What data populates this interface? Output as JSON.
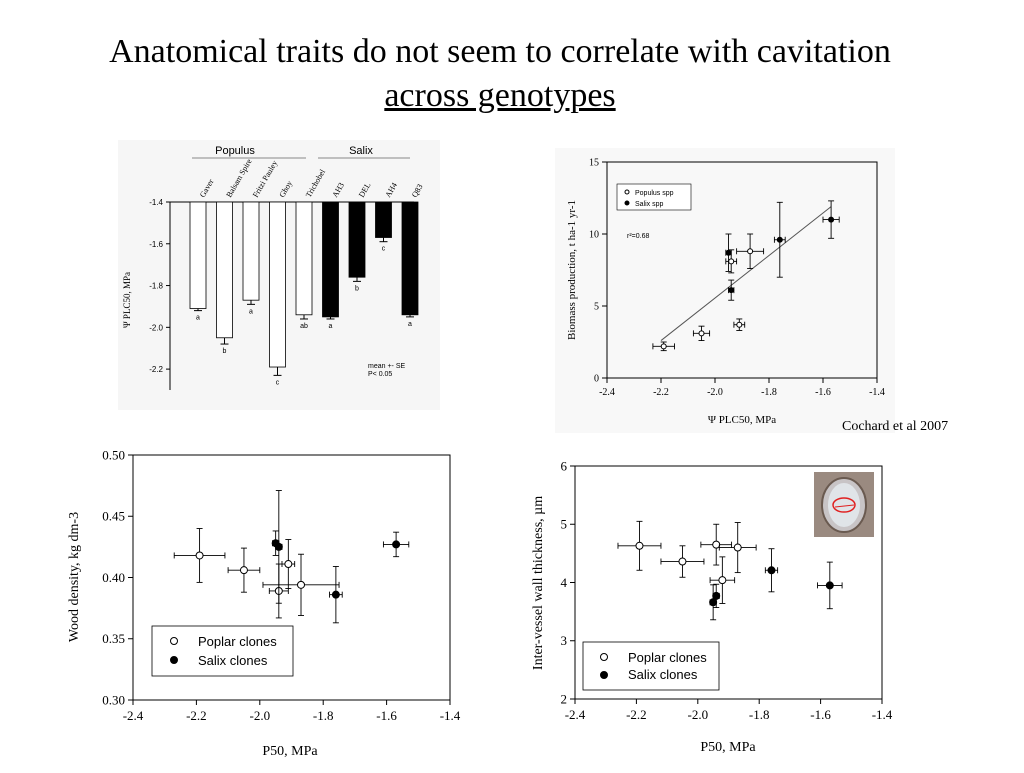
{
  "slide": {
    "title_line1": "Anatomical traits do not seem to correlate with cavitation",
    "title_line2": "across genotypes",
    "credit": "Cochard et al 2007"
  },
  "chart_data": [
    {
      "type": "bar",
      "groups": [
        "Populus",
        "Salix"
      ],
      "categories": [
        "Gaver",
        "Balsam Spire",
        "Fritzi Pauley",
        "Ghoy",
        "Trichobel",
        "AH3",
        "DEL",
        "AH4",
        "Q83"
      ],
      "group_of": [
        "Populus",
        "Populus",
        "Populus",
        "Populus",
        "Populus",
        "Salix",
        "Salix",
        "Salix",
        "Salix"
      ],
      "values": [
        -1.91,
        -2.05,
        -1.87,
        -2.19,
        -1.94,
        -1.95,
        -1.76,
        -1.57,
        -1.94
      ],
      "errors": [
        0.01,
        0.03,
        0.02,
        0.04,
        0.02,
        0.01,
        0.02,
        0.02,
        0.01
      ],
      "letters": [
        "a",
        "b",
        "a",
        "c",
        "ab",
        "a",
        "b",
        "c",
        "a"
      ],
      "ylabel": "Ψ PLC50, MPa",
      "yticks": [
        -1.4,
        -1.6,
        -1.8,
        -2.0,
        -2.2
      ],
      "ylim": [
        -2.3,
        -1.4
      ],
      "note_line1": "mean +- SE",
      "note_line2": "P< 0.05",
      "colors": {
        "Populus": "#ffffff",
        "Salix": "#000000"
      }
    },
    {
      "type": "scatter",
      "xlabel": "Ψ PLC50, MPa",
      "ylabel": "Biomass production, t ha-1 yr-1",
      "xlim": [
        -2.4,
        -1.4
      ],
      "ylim": [
        0,
        15
      ],
      "xticks": [
        -2.4,
        -2.2,
        -2.0,
        -1.8,
        -1.6,
        -1.4
      ],
      "yticks": [
        0,
        5,
        10,
        15
      ],
      "annotation": "r²=0.68",
      "legend": [
        "Populus spp",
        "Salix spp"
      ],
      "series": [
        {
          "name": "Populus spp",
          "filled": false,
          "points": [
            {
              "x": -2.19,
              "y": 2.2,
              "xerr": 0.04,
              "yerr": 0.3
            },
            {
              "x": -2.05,
              "y": 3.1,
              "xerr": 0.03,
              "yerr": 0.5
            },
            {
              "x": -1.91,
              "y": 3.7,
              "xerr": 0.02,
              "yerr": 0.4
            },
            {
              "x": -1.94,
              "y": 8.1,
              "xerr": 0.02,
              "yerr": 0.8
            },
            {
              "x": -1.87,
              "y": 8.8,
              "xerr": 0.05,
              "yerr": 1.2
            }
          ]
        },
        {
          "name": "Salix spp",
          "filled": true,
          "points": [
            {
              "x": -1.95,
              "y": 8.7,
              "xerr": 0.01,
              "yerr": 1.3
            },
            {
              "x": -1.94,
              "y": 6.1,
              "xerr": 0.01,
              "yerr": 0.7
            },
            {
              "x": -1.76,
              "y": 9.6,
              "xerr": 0.02,
              "yerr": 2.6
            },
            {
              "x": -1.57,
              "y": 11.0,
              "xerr": 0.03,
              "yerr": 1.3
            }
          ]
        }
      ],
      "fit_line": {
        "x": [
          -2.2,
          -1.57
        ],
        "y": [
          2.6,
          11.9
        ]
      }
    },
    {
      "type": "scatter",
      "xlabel": "P50, MPa",
      "ylabel": "Wood density, kg dm-3",
      "xlim": [
        -2.4,
        -1.4
      ],
      "ylim": [
        0.3,
        0.5
      ],
      "xticks": [
        -2.4,
        -2.2,
        -2.0,
        -1.8,
        -1.6,
        -1.4
      ],
      "yticks": [
        0.3,
        0.35,
        0.4,
        0.45,
        0.5
      ],
      "legend": [
        "Poplar clones",
        "Salix clones"
      ],
      "series": [
        {
          "name": "Poplar clones",
          "filled": false,
          "points": [
            {
              "x": -2.19,
              "y": 0.418,
              "xerr": 0.08,
              "yerr": 0.022
            },
            {
              "x": -2.05,
              "y": 0.406,
              "xerr": 0.05,
              "yerr": 0.018
            },
            {
              "x": -1.94,
              "y": 0.389,
              "xerr": 0.03,
              "yerr": 0.022
            },
            {
              "x": -1.91,
              "y": 0.411,
              "xerr": 0.02,
              "yerr": 0.02
            },
            {
              "x": -1.87,
              "y": 0.394,
              "xerr": 0.12,
              "yerr": 0.025
            }
          ]
        },
        {
          "name": "Salix clones",
          "filled": true,
          "points": [
            {
              "x": -1.95,
              "y": 0.428,
              "xerr": 0.01,
              "yerr": 0.01
            },
            {
              "x": -1.94,
              "y": 0.425,
              "xerr": 0.01,
              "yerr": 0.046
            },
            {
              "x": -1.76,
              "y": 0.386,
              "xerr": 0.02,
              "yerr": 0.023
            },
            {
              "x": -1.57,
              "y": 0.427,
              "xerr": 0.04,
              "yerr": 0.01
            }
          ]
        }
      ]
    },
    {
      "type": "scatter",
      "xlabel": "P50, MPa",
      "ylabel": "Inter-vessel wall thickness, µm",
      "xlim": [
        -2.4,
        -1.4
      ],
      "ylim": [
        2,
        6
      ],
      "xticks": [
        -2.4,
        -2.2,
        -2.0,
        -1.8,
        -1.6,
        -1.4
      ],
      "yticks": [
        2,
        3,
        4,
        5,
        6
      ],
      "legend": [
        "Poplar clones",
        "Salix clones"
      ],
      "series": [
        {
          "name": "Poplar clones",
          "filled": false,
          "points": [
            {
              "x": -2.19,
              "y": 4.63,
              "xerr": 0.07,
              "yerr": 0.42
            },
            {
              "x": -2.05,
              "y": 4.36,
              "xerr": 0.07,
              "yerr": 0.27
            },
            {
              "x": -1.94,
              "y": 4.65,
              "xerr": 0.05,
              "yerr": 0.35
            },
            {
              "x": -1.92,
              "y": 4.04,
              "xerr": 0.04,
              "yerr": 0.4
            },
            {
              "x": -1.87,
              "y": 4.6,
              "xerr": 0.06,
              "yerr": 0.43
            }
          ]
        },
        {
          "name": "Salix clones",
          "filled": true,
          "points": [
            {
              "x": -1.95,
              "y": 3.66,
              "xerr": 0.01,
              "yerr": 0.3
            },
            {
              "x": -1.94,
              "y": 3.77,
              "xerr": 0.01,
              "yerr": 0.2
            },
            {
              "x": -1.76,
              "y": 4.21,
              "xerr": 0.02,
              "yerr": 0.37
            },
            {
              "x": -1.57,
              "y": 3.95,
              "xerr": 0.04,
              "yerr": 0.4
            }
          ]
        }
      ]
    }
  ]
}
